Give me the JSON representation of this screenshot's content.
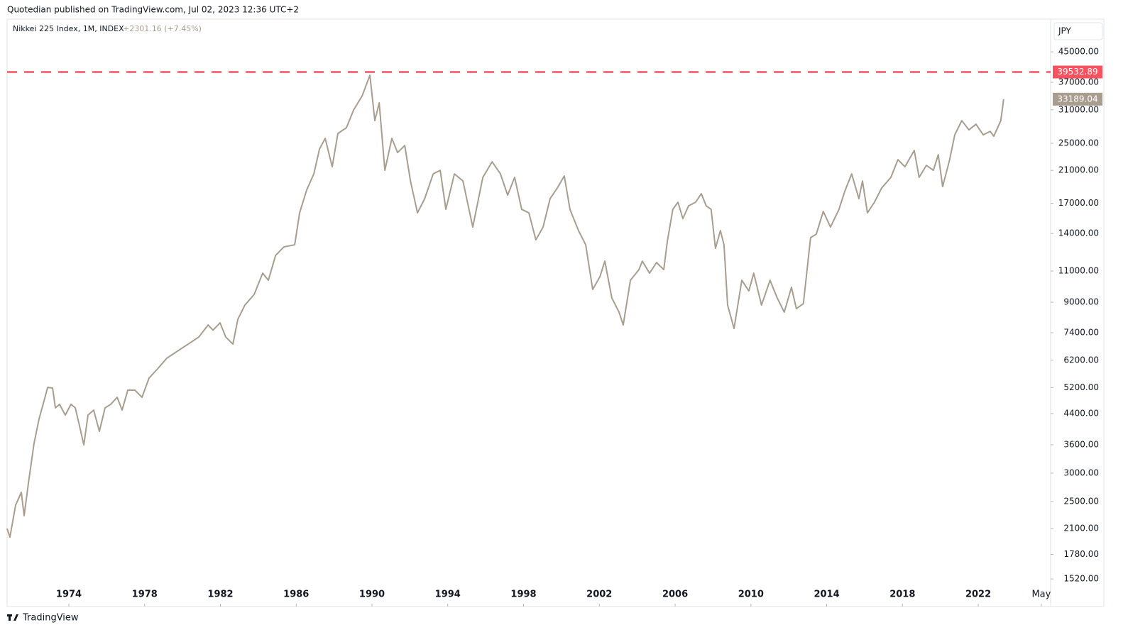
{
  "header": "Quotedian published on TradingView.com, Jul 02, 2023 12:36 UTC+2",
  "brand": "TradingView",
  "chart_data": {
    "type": "line",
    "title": "Nikkei 225 Index, 1M, INDEX",
    "change": "+2301.16 (+7.45%)",
    "currency": "JPY",
    "log_scale": true,
    "grid": false,
    "xlim": [
      1970.74,
      2025.82
    ],
    "ylim": [
      1273,
      55270
    ],
    "xticks": [
      1974,
      1978,
      1982,
      1986,
      1990,
      1994,
      1998,
      2002,
      2006,
      2010,
      2014,
      2018,
      2022,
      {
        "value": 2025.33,
        "label": "May"
      }
    ],
    "yticks": [
      {
        "value": 45000,
        "label": "45000.00"
      },
      {
        "value": 37000,
        "label": "37000.00"
      },
      {
        "value": 31000,
        "label": "31000.00"
      },
      {
        "value": 25000,
        "label": "25000.00"
      },
      {
        "value": 21000,
        "label": "21000.00"
      },
      {
        "value": 17000,
        "label": "17000.00"
      },
      {
        "value": 14000,
        "label": "14000.00"
      },
      {
        "value": 11000,
        "label": "11000.00"
      },
      {
        "value": 9000,
        "label": "9000.00"
      },
      {
        "value": 7400,
        "label": "7400.00"
      },
      {
        "value": 6200,
        "label": "6200.00"
      },
      {
        "value": 5200,
        "label": "5200.00"
      },
      {
        "value": 4400,
        "label": "4400.00"
      },
      {
        "value": 3600,
        "label": "3600.00"
      },
      {
        "value": 3000,
        "label": "3000.00"
      },
      {
        "value": 2500,
        "label": "2500.00"
      },
      {
        "value": 2100,
        "label": "2100.00"
      },
      {
        "value": 1780,
        "label": "1780.00"
      },
      {
        "value": 1520,
        "label": "1520.00"
      }
    ],
    "hline": {
      "value": 39532.89,
      "color": "#f7525f"
    },
    "x": [
      1970.74,
      1970.89,
      1971.19,
      1971.49,
      1971.64,
      1971.87,
      1972.16,
      1972.43,
      1972.69,
      1972.88,
      1973.14,
      1973.29,
      1973.51,
      1973.81,
      1974.11,
      1974.34,
      1974.56,
      1974.79,
      1975.01,
      1975.31,
      1975.61,
      1975.91,
      1976.21,
      1976.55,
      1976.81,
      1977.11,
      1977.49,
      1977.86,
      1978.23,
      1978.68,
      1979.17,
      1979.73,
      1980.3,
      1980.86,
      1981.35,
      1981.61,
      1981.98,
      1982.28,
      1982.66,
      1982.92,
      1983.29,
      1983.78,
      1984.23,
      1984.53,
      1984.91,
      1985.35,
      1985.92,
      1986.18,
      1986.55,
      1986.93,
      1987.23,
      1987.53,
      1987.9,
      1988.2,
      1988.65,
      1989.03,
      1989.48,
      1989.89,
      1990.15,
      1990.38,
      1990.68,
      1991.05,
      1991.35,
      1991.73,
      1992.03,
      1992.4,
      1992.78,
      1993.23,
      1993.6,
      1993.9,
      1994.35,
      1994.8,
      1995.32,
      1995.85,
      1996.34,
      1996.78,
      1997.16,
      1997.53,
      1997.9,
      1998.28,
      1998.65,
      1999.03,
      1999.4,
      1999.78,
      2000.15,
      2000.45,
      2000.9,
      2001.28,
      2001.65,
      2002.03,
      2002.29,
      2002.66,
      2003.04,
      2003.26,
      2003.64,
      2004.09,
      2004.27,
      2004.65,
      2005.02,
      2005.4,
      2005.59,
      2005.88,
      2006.15,
      2006.41,
      2006.71,
      2007.08,
      2007.38,
      2007.64,
      2007.9,
      2008.13,
      2008.39,
      2008.58,
      2008.77,
      2009.11,
      2009.52,
      2009.89,
      2010.15,
      2010.56,
      2011.01,
      2011.39,
      2011.76,
      2012.14,
      2012.4,
      2012.77,
      2013.15,
      2013.45,
      2013.82,
      2014.2,
      2014.65,
      2014.95,
      2015.32,
      2015.7,
      2015.89,
      2016.15,
      2016.52,
      2016.9,
      2017.39,
      2017.76,
      2018.13,
      2018.62,
      2018.88,
      2019.26,
      2019.63,
      2019.89,
      2020.12,
      2020.49,
      2020.76,
      2021.13,
      2021.51,
      2021.88,
      2022.26,
      2022.63,
      2022.82,
      2023.19,
      2023.34
    ],
    "series": [
      {
        "color": "#a89d8f",
        "values": [
          2101,
          1989,
          2443,
          2652,
          2282,
          2827,
          3630,
          4260,
          4774,
          5206,
          5185,
          4563,
          4670,
          4357,
          4670,
          4563,
          4068,
          3598,
          4357,
          4500,
          3923,
          4563,
          4670,
          4884,
          4500,
          5113,
          5113,
          4884,
          5525,
          5864,
          6281,
          6572,
          6878,
          7198,
          7777,
          7522,
          7885,
          7198,
          6878,
          8068,
          8838,
          9460,
          10850,
          10364,
          12160,
          12843,
          13020,
          15986,
          18500,
          20538,
          24096,
          25803,
          21496,
          26634,
          27626,
          30968,
          33911,
          38717,
          28918,
          32420,
          21015,
          25803,
          23553,
          24650,
          19625,
          15986,
          17508,
          20538,
          21015,
          16354,
          20538,
          19625,
          14591,
          20083,
          22193,
          20538,
          17915,
          20083,
          16354,
          15986,
          13443,
          14591,
          17508,
          18750,
          20265,
          16354,
          14266,
          13020,
          9770,
          10605,
          11722,
          9248,
          8443,
          7777,
          10364,
          11098,
          11722,
          10850,
          11614,
          11098,
          13320,
          16354,
          17113,
          15408,
          16727,
          17113,
          18081,
          16727,
          16354,
          12727,
          14266,
          13020,
          8838,
          7601,
          10364,
          9680,
          10850,
          8838,
          10364,
          9248,
          8443,
          9908,
          8638,
          8920,
          13630,
          13943,
          16134,
          14591,
          16354,
          18330,
          20538,
          17508,
          19625,
          15986,
          17113,
          18750,
          20083,
          22500,
          21496,
          23877,
          20083,
          21694,
          21015,
          23229,
          18922,
          22500,
          26392,
          28918,
          27252,
          28264,
          26392,
          27000,
          26159,
          28918,
          33189.04
        ]
      }
    ]
  }
}
